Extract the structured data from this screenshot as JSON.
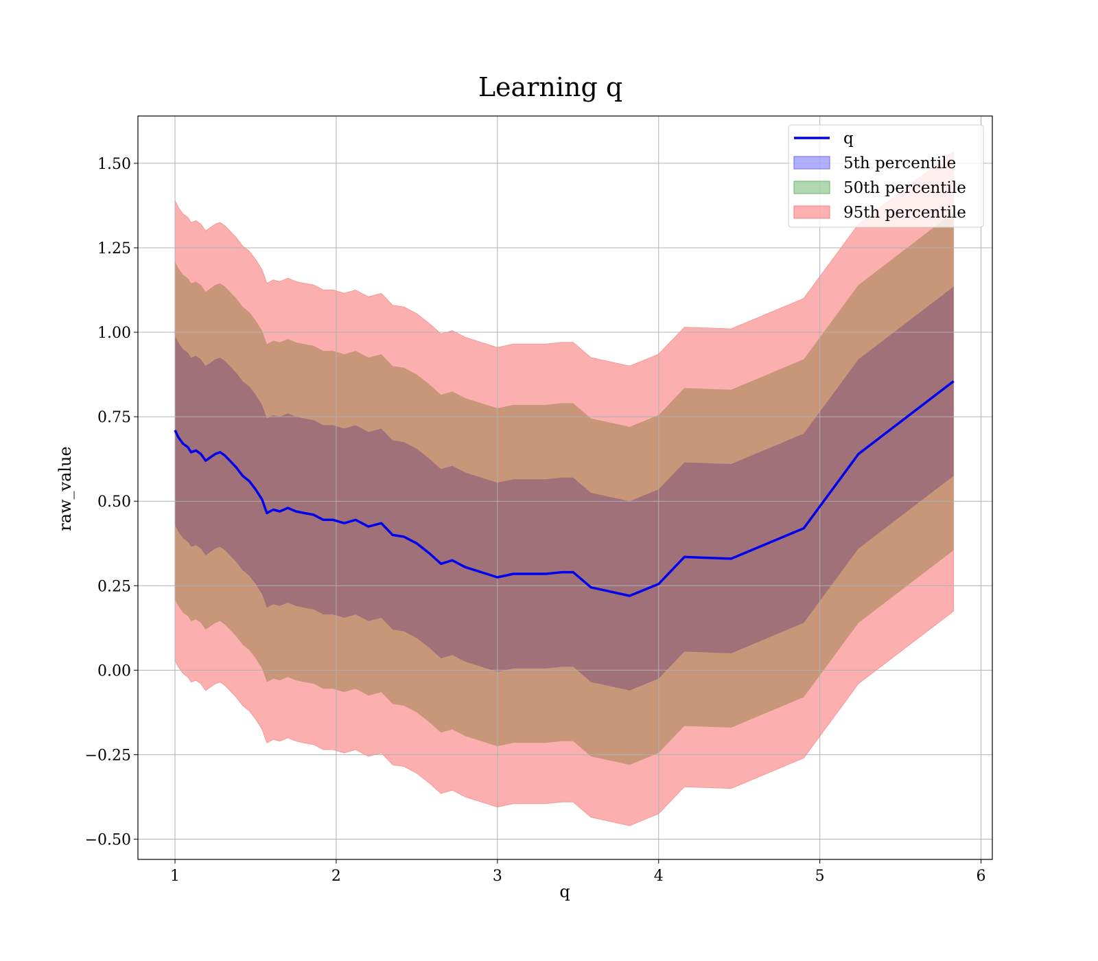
{
  "chart_data": {
    "type": "area",
    "title": "Learning q",
    "xlabel": "q",
    "ylabel": "raw_value",
    "xlim": [
      0.77,
      6.07
    ],
    "ylim": [
      -0.56,
      1.64
    ],
    "xticks": [
      1,
      2,
      3,
      4,
      5,
      6
    ],
    "yticks": [
      -0.5,
      -0.25,
      0.0,
      0.25,
      0.5,
      0.75,
      1.0,
      1.25,
      1.5
    ],
    "ytick_labels": [
      "−0.50",
      "−0.25",
      "0.00",
      "0.25",
      "0.50",
      "0.75",
      "1.00",
      "1.25",
      "1.50"
    ],
    "grid": true,
    "legend_position": "upper-right",
    "x": [
      1.0,
      1.02,
      1.05,
      1.08,
      1.1,
      1.13,
      1.16,
      1.19,
      1.22,
      1.25,
      1.28,
      1.31,
      1.34,
      1.38,
      1.42,
      1.46,
      1.5,
      1.54,
      1.57,
      1.61,
      1.65,
      1.7,
      1.75,
      1.8,
      1.86,
      1.92,
      1.98,
      2.05,
      2.12,
      2.2,
      2.28,
      2.35,
      2.42,
      2.5,
      2.58,
      2.65,
      2.72,
      2.8,
      2.9,
      3.0,
      3.1,
      3.2,
      3.3,
      3.4,
      3.47,
      3.58,
      3.82,
      4.0,
      4.16,
      4.45,
      4.9,
      5.24,
      5.83
    ],
    "series": [
      {
        "name": "q",
        "type": "line",
        "color": "#0000ee",
        "values": [
          0.71,
          0.69,
          0.67,
          0.66,
          0.645,
          0.65,
          0.64,
          0.62,
          0.63,
          0.64,
          0.645,
          0.635,
          0.62,
          0.6,
          0.575,
          0.56,
          0.535,
          0.505,
          0.465,
          0.475,
          0.47,
          0.48,
          0.47,
          0.465,
          0.46,
          0.445,
          0.445,
          0.435,
          0.445,
          0.425,
          0.435,
          0.4,
          0.395,
          0.375,
          0.345,
          0.315,
          0.325,
          0.305,
          0.29,
          0.275,
          0.285,
          0.285,
          0.285,
          0.29,
          0.29,
          0.245,
          0.22,
          0.255,
          0.335,
          0.33,
          0.42,
          0.64,
          0.855
        ]
      },
      {
        "name": "5th percentile",
        "type": "band",
        "color": "#7f7fff",
        "half_width": 0.28
      },
      {
        "name": "50th percentile",
        "type": "band",
        "color": "#7fbf7f",
        "half_width": 0.5
      },
      {
        "name": "95th percentile",
        "type": "band",
        "color": "#ff8080",
        "half_width": 0.68
      }
    ],
    "colors": {
      "overlap_inner": "#a1717a",
      "overlap_middle": "#c89679",
      "outer_band": "#fcafaf",
      "outer_band_edge": "#f59a9a",
      "mean_line": "#0000ee",
      "grid": "#b0b0b0"
    }
  }
}
